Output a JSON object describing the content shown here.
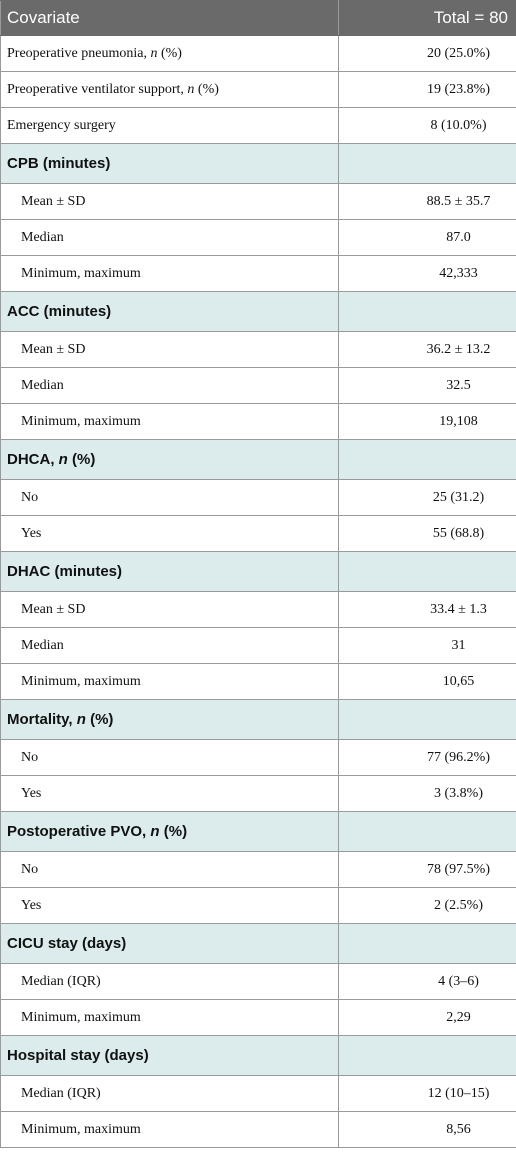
{
  "table": {
    "header": [
      "Covariate",
      "Total = 80"
    ],
    "top_rows": [
      {
        "label": [
          {
            "text": "Preoperative pneumonia, "
          },
          {
            "text": "n",
            "italic": true
          },
          {
            "text": " (%)"
          }
        ],
        "value": "20 (25.0%)"
      },
      {
        "label": [
          {
            "text": "Preoperative ventilator support, "
          },
          {
            "text": "n",
            "italic": true
          },
          {
            "text": " (%)"
          }
        ],
        "value": "19 (23.8%)"
      },
      {
        "label": [
          {
            "text": "Emergency surgery"
          }
        ],
        "value": "8 (10.0%)"
      }
    ],
    "sections": [
      {
        "title": [
          {
            "text": "CPB (minutes)"
          }
        ],
        "rows": [
          {
            "label": [
              {
                "text": "Mean ± SD"
              }
            ],
            "value": "88.5 ± 35.7"
          },
          {
            "label": [
              {
                "text": "Median"
              }
            ],
            "value": "87.0"
          },
          {
            "label": [
              {
                "text": "Minimum, maximum"
              }
            ],
            "value": "42,333"
          }
        ]
      },
      {
        "title": [
          {
            "text": "ACC (minutes)"
          }
        ],
        "rows": [
          {
            "label": [
              {
                "text": "Mean ± SD"
              }
            ],
            "value": "36.2 ± 13.2"
          },
          {
            "label": [
              {
                "text": "Median"
              }
            ],
            "value": "32.5"
          },
          {
            "label": [
              {
                "text": "Minimum, maximum"
              }
            ],
            "value": "19,108"
          }
        ]
      },
      {
        "title": [
          {
            "text": "DHCA, "
          },
          {
            "text": "n",
            "italic": true
          },
          {
            "text": " (%)"
          }
        ],
        "rows": [
          {
            "label": [
              {
                "text": "No"
              }
            ],
            "value": "25 (31.2)"
          },
          {
            "label": [
              {
                "text": "Yes"
              }
            ],
            "value": "55 (68.8)"
          }
        ]
      },
      {
        "title": [
          {
            "text": "DHAC (minutes)"
          }
        ],
        "rows": [
          {
            "label": [
              {
                "text": "Mean ± SD"
              }
            ],
            "value": "33.4 ± 1.3"
          },
          {
            "label": [
              {
                "text": "Median"
              }
            ],
            "value": "31"
          },
          {
            "label": [
              {
                "text": "Minimum, maximum"
              }
            ],
            "value": "10,65"
          }
        ]
      },
      {
        "title": [
          {
            "text": "Mortality, "
          },
          {
            "text": "n",
            "italic": true
          },
          {
            "text": " (%)"
          }
        ],
        "rows": [
          {
            "label": [
              {
                "text": "No"
              }
            ],
            "value": "77 (96.2%)"
          },
          {
            "label": [
              {
                "text": "Yes"
              }
            ],
            "value": "3 (3.8%)"
          }
        ]
      },
      {
        "title": [
          {
            "text": "Postoperative PVO, "
          },
          {
            "text": "n",
            "italic": true
          },
          {
            "text": " (%)"
          }
        ],
        "rows": [
          {
            "label": [
              {
                "text": "No"
              }
            ],
            "value": "78 (97.5%)"
          },
          {
            "label": [
              {
                "text": "Yes"
              }
            ],
            "value": "2 (2.5%)"
          }
        ]
      },
      {
        "title": [
          {
            "text": "CICU stay (days)"
          }
        ],
        "rows": [
          {
            "label": [
              {
                "text": "Median (IQR)"
              }
            ],
            "value": "4 (3–6)"
          },
          {
            "label": [
              {
                "text": "Minimum, maximum"
              }
            ],
            "value": "2,29"
          }
        ]
      },
      {
        "title": [
          {
            "text": "Hospital stay (days)"
          }
        ],
        "rows": [
          {
            "label": [
              {
                "text": "Median (IQR)"
              }
            ],
            "value": "12 (10–15)"
          },
          {
            "label": [
              {
                "text": "Minimum, maximum"
              }
            ],
            "value": "8,56"
          }
        ]
      }
    ]
  }
}
